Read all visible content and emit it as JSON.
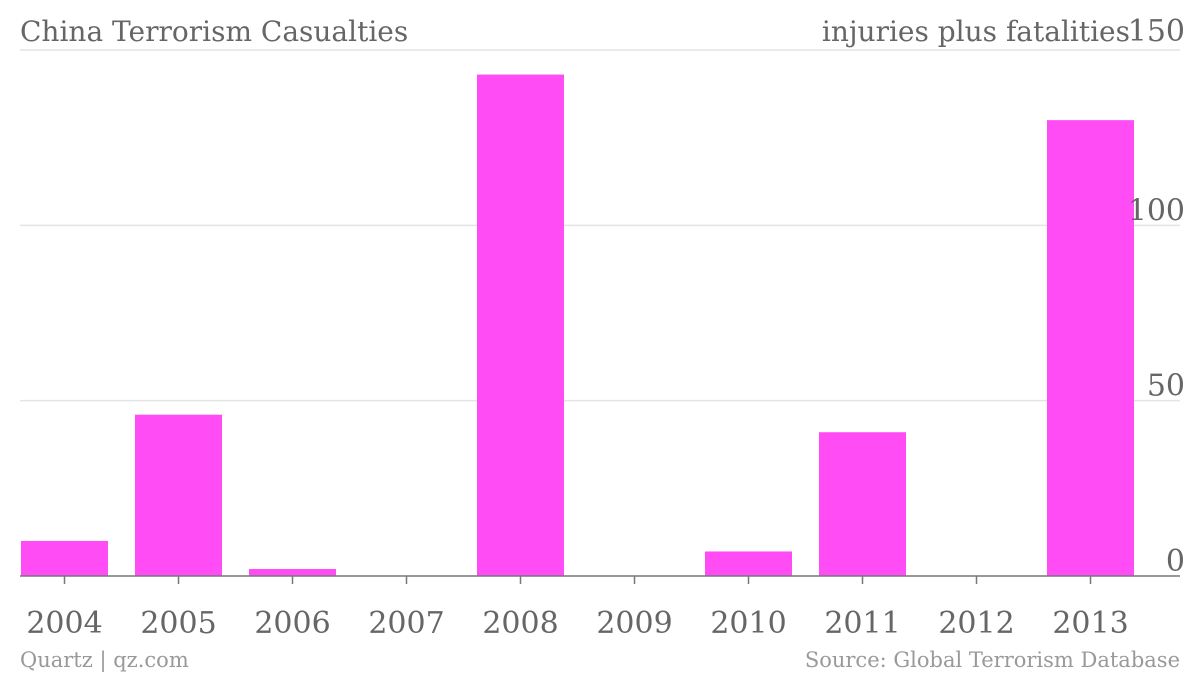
{
  "chart_data": {
    "type": "bar",
    "title": "China Terrorism Casualties",
    "ylabel": "injuries plus fatalities",
    "categories": [
      "2004",
      "2005",
      "2006",
      "2007",
      "2008",
      "2009",
      "2010",
      "2011",
      "2012",
      "2013"
    ],
    "values": [
      10,
      46,
      2,
      0,
      143,
      0,
      7,
      41,
      0,
      130
    ],
    "ylim": [
      0,
      150
    ],
    "yticks": [
      0,
      50,
      100,
      150
    ],
    "grid": true,
    "y_axis_position": "right",
    "bar_color": "#ff4cf4"
  },
  "footer": {
    "credit": "Quartz | qz.com",
    "source": "Source: Global Terrorism Database"
  }
}
